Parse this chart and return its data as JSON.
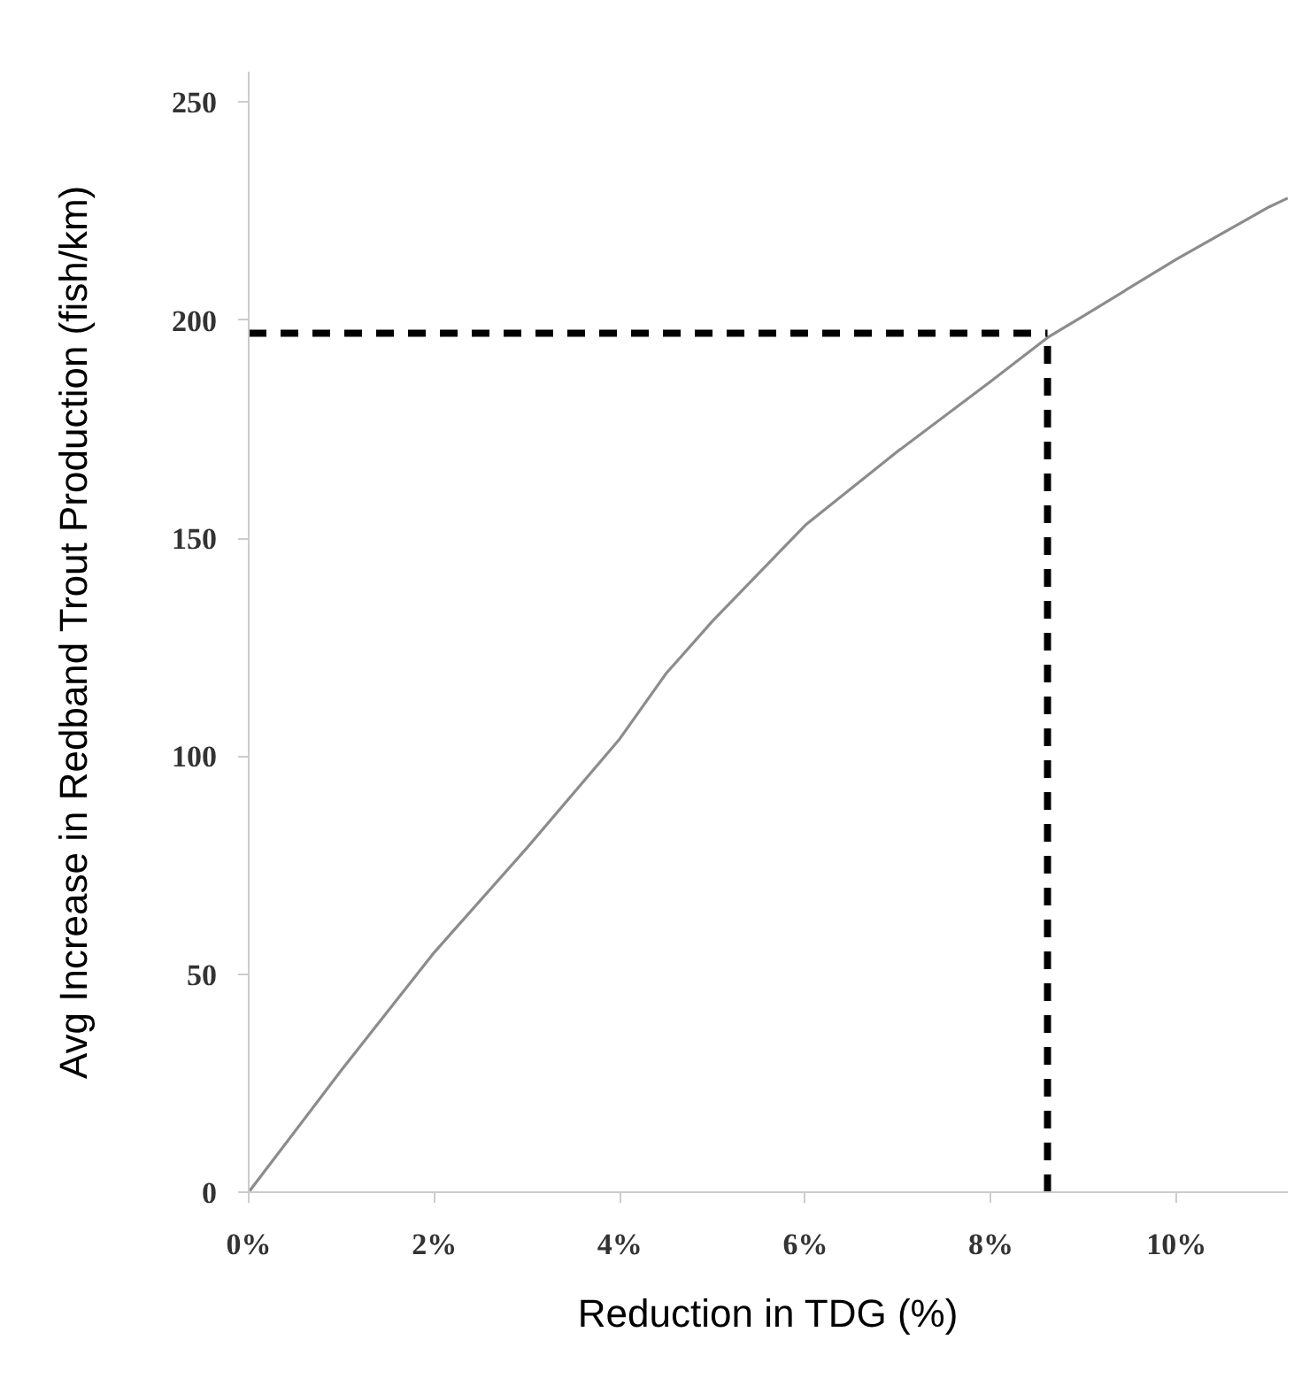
{
  "chart_data": {
    "type": "line",
    "xlabel": "Reduction in TDG (%)",
    "ylabel": "Avg Increase in Redband Trout Production (fish/km)",
    "xlim": [
      0,
      11.2
    ],
    "ylim": [
      0,
      257
    ],
    "xticks": [
      {
        "value": 0,
        "label": "0%"
      },
      {
        "value": 2,
        "label": "2%"
      },
      {
        "value": 4,
        "label": "4%"
      },
      {
        "value": 6,
        "label": "6%"
      },
      {
        "value": 8,
        "label": "8%"
      },
      {
        "value": 10,
        "label": "10%"
      }
    ],
    "yticks": [
      0,
      50,
      100,
      150,
      200,
      250
    ],
    "grid": false,
    "series": [
      {
        "color": "#8c8c8c",
        "x": [
          0,
          1,
          2,
          3,
          4,
          4.5,
          5,
          6,
          7,
          8,
          8.61,
          9,
          10,
          11,
          11.2
        ],
        "values": [
          0,
          28,
          55,
          79,
          104,
          119,
          131,
          153,
          170,
          186,
          196,
          201,
          214,
          226,
          228
        ]
      }
    ],
    "ref_lines": [
      {
        "axis": "y",
        "value": 197,
        "color": "#000000",
        "line_style": "dashed"
      },
      {
        "axis": "x",
        "value": 8.61,
        "color": "#000000",
        "line_style": "dashed"
      }
    ]
  }
}
